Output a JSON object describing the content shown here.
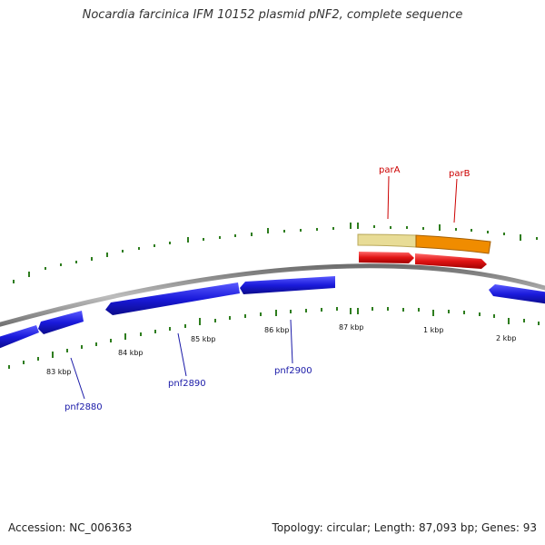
{
  "title": "Nocardia farcinica IFM 10152 plasmid pNF2, complete sequence",
  "footer": {
    "accession": "Accession: NC_006363",
    "stats": "Topology: circular; Length: 87,093 bp; Genes: 93"
  },
  "colors": {
    "backbone": "#8a8a8a",
    "gc_ticks": "#2e7d1e",
    "gene_blue": "#1a1adb",
    "gene_red": "#e01414",
    "band_pale": "#e8dc96",
    "band_orange": "#f08c00",
    "label_red": "#cc0000",
    "label_blue": "#1a1aa8"
  },
  "ticks": [
    {
      "label": "83 kbp"
    },
    {
      "label": "84 kbp"
    },
    {
      "label": "85 kbp"
    },
    {
      "label": "86 kbp"
    },
    {
      "label": "87 kbp"
    },
    {
      "label": "1 kbp"
    },
    {
      "label": "2 kbp"
    }
  ],
  "gene_labels": {
    "parA": "parA",
    "parB": "parB",
    "pnf2880": "pnf2880",
    "pnf2890": "pnf2890",
    "pnf2900": "pnf2900"
  }
}
